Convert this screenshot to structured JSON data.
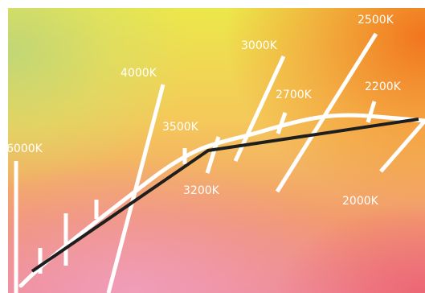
{
  "isotherm_labels": [
    "6000K",
    "4000K",
    "3500K",
    "3200K",
    "3000K",
    "2700K",
    "2500K",
    "2200K",
    "2000K"
  ],
  "colors": {
    "planckian_locus": "#ffffff",
    "source_line": "#1e1e1e",
    "isotherms": "#ffffff",
    "label_text": "#ffffff"
  }
}
